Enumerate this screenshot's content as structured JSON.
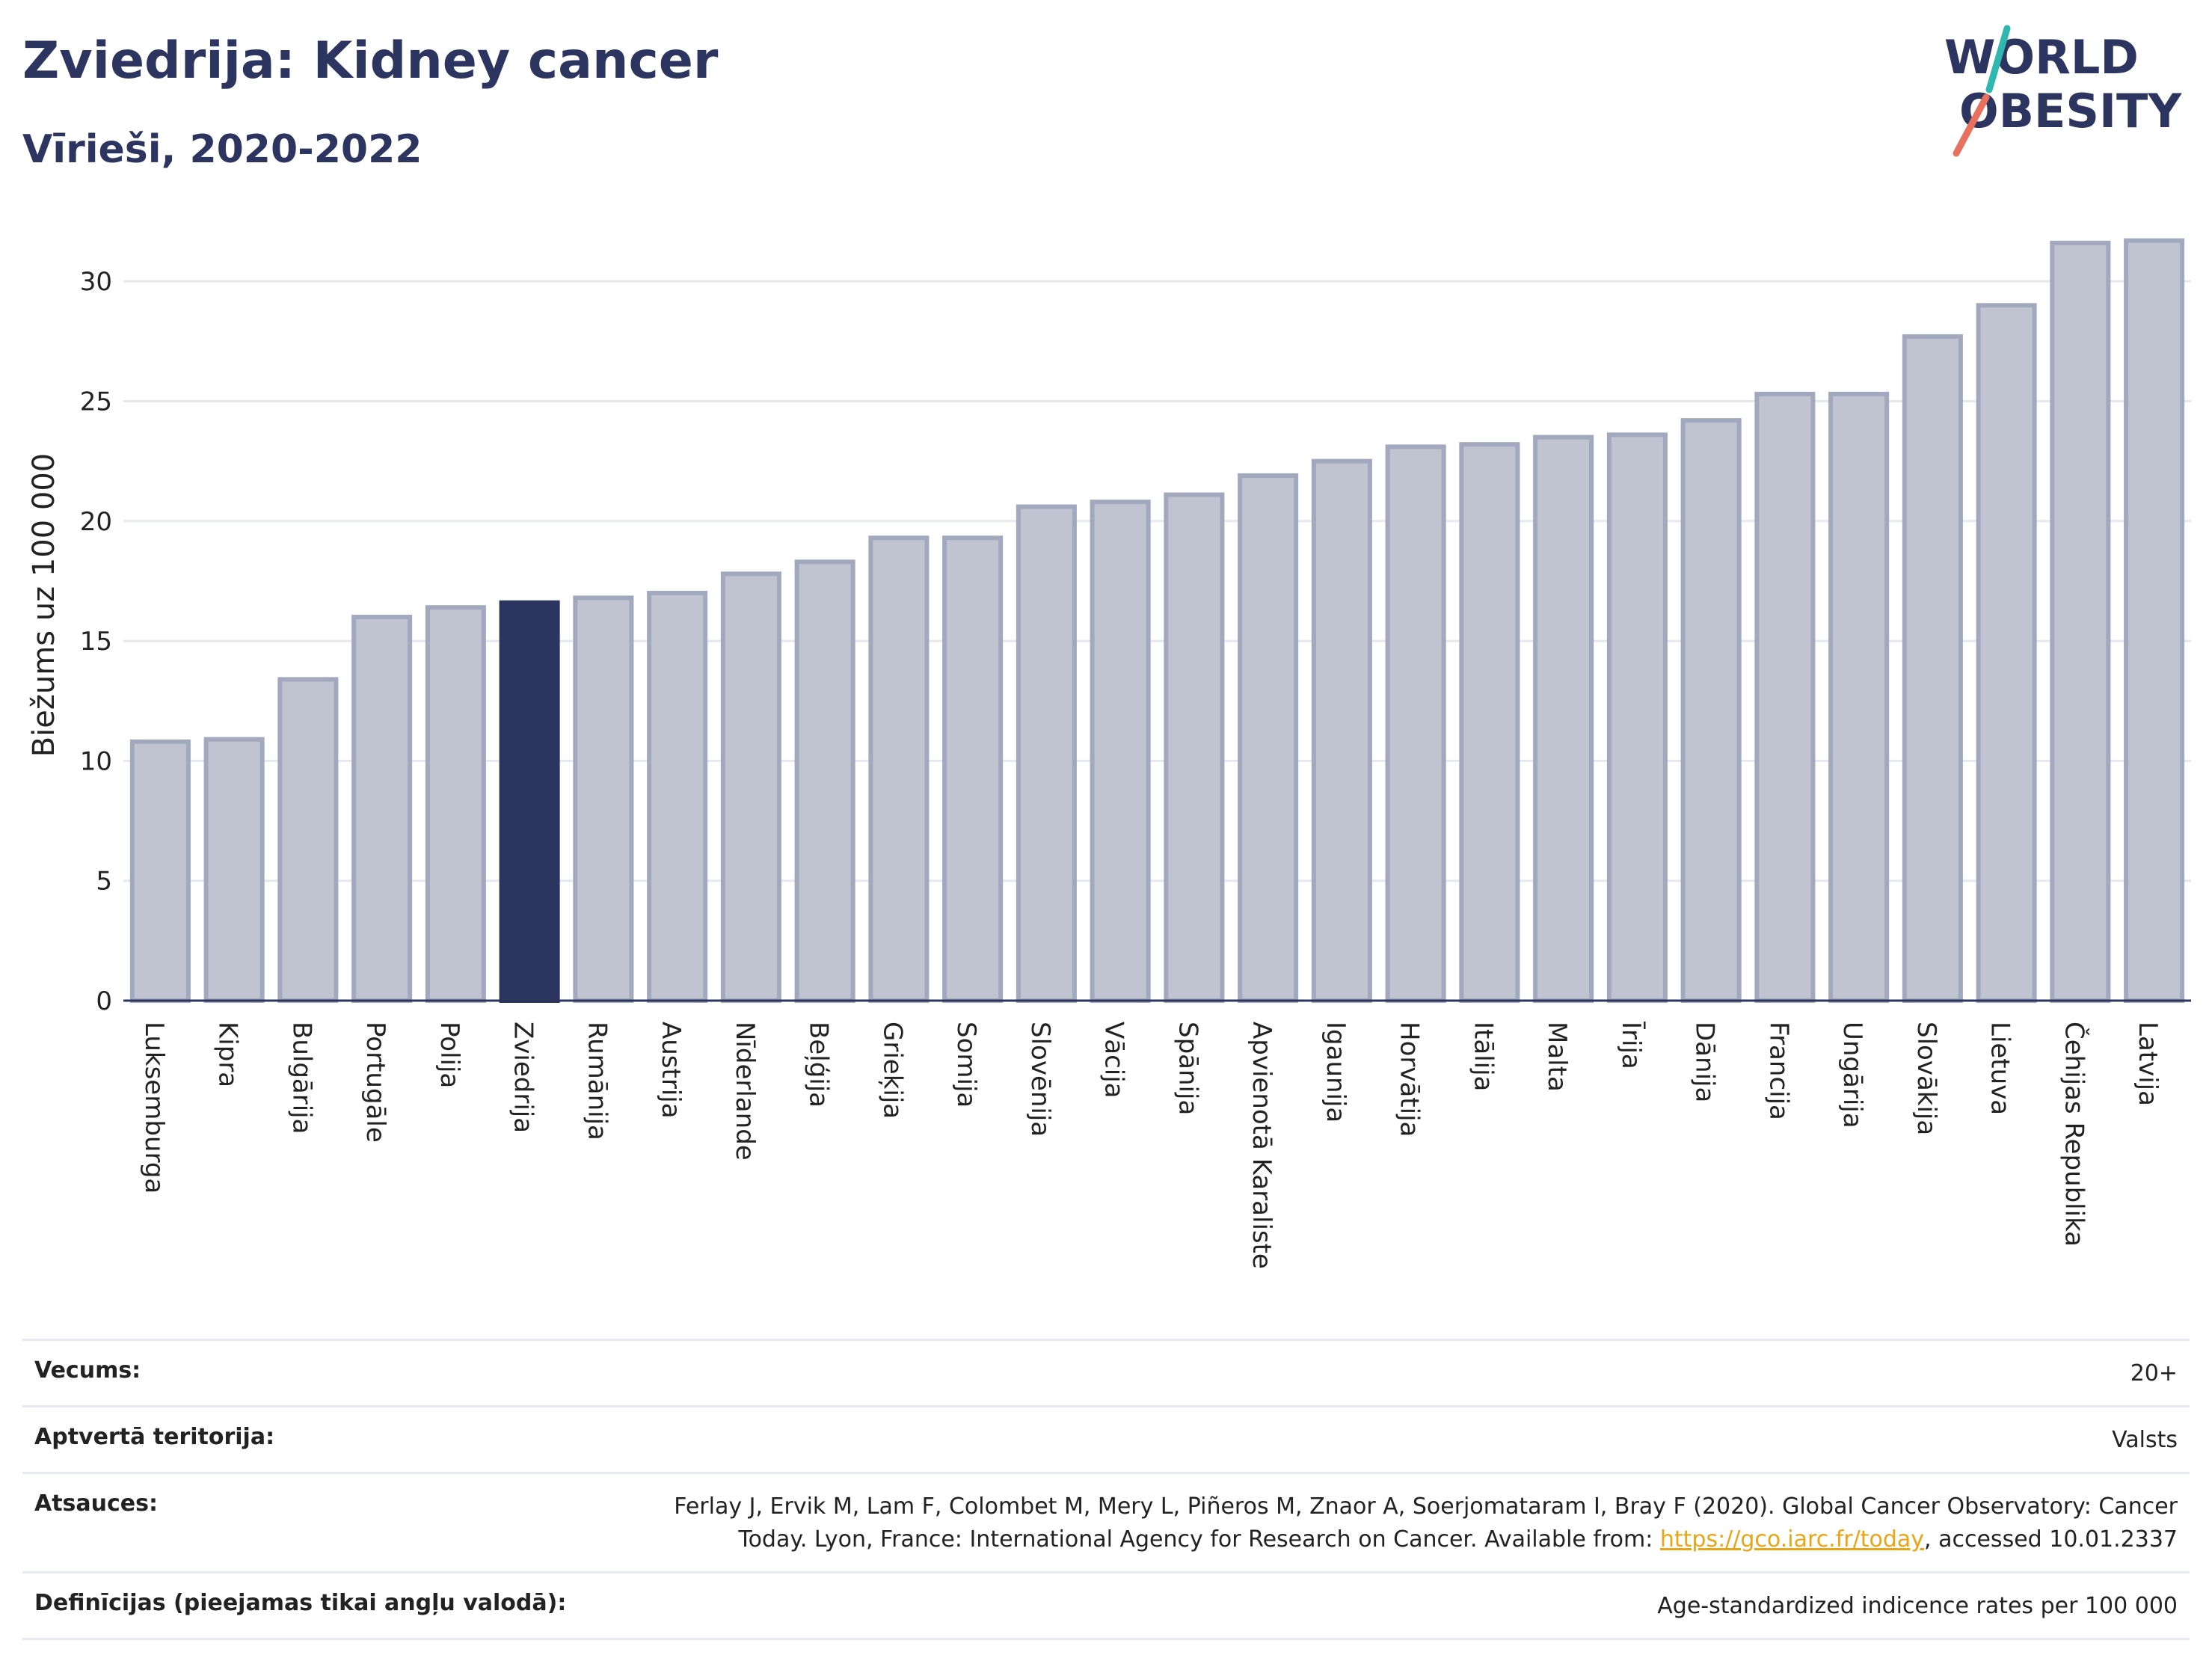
{
  "header": {
    "title": "Zviedrija: Kidney cancer",
    "subtitle": "Vīrieši, 2020-2022"
  },
  "logo": {
    "line1": "WORLD",
    "line2": "OBESITY"
  },
  "chart_data": {
    "type": "bar",
    "ylabel": "Biežums uz 100 000",
    "ylim": [
      0,
      33
    ],
    "yticks": [
      0,
      5,
      10,
      15,
      20,
      25,
      30
    ],
    "grid": true,
    "highlight": "Zviedrija",
    "colors": {
      "bar_fill": "#c0c4d1",
      "bar_stroke": "#a2a8bd",
      "highlight_fill": "#2b3560",
      "grid": "#e6e8ee",
      "axis": "#2b3560"
    },
    "categories": [
      "Luksemburga",
      "Kipra",
      "Bulgārija",
      "Portugāle",
      "Polija",
      "Zviedrija",
      "Rumānija",
      "Austrija",
      "Nīderlande",
      "Beļģija",
      "Grieķija",
      "Somija",
      "Slovēnija",
      "Vācija",
      "Spānija",
      "Apvienotā Karaliste",
      "Igaunija",
      "Horvātija",
      "Itālija",
      "Malta",
      "Īrija",
      "Dānija",
      "Francija",
      "Ungārija",
      "Slovākija",
      "Lietuva",
      "Čehijas Republika",
      "Latvija"
    ],
    "values": [
      10.8,
      10.9,
      13.4,
      16.0,
      16.4,
      16.6,
      16.8,
      17.0,
      17.8,
      18.3,
      19.3,
      19.3,
      20.6,
      20.8,
      21.1,
      21.9,
      22.5,
      23.1,
      23.2,
      23.5,
      23.6,
      24.2,
      25.3,
      25.3,
      27.7,
      29.0,
      31.6,
      31.7
    ]
  },
  "info": {
    "age": {
      "label": "Vecums:",
      "value": "20+"
    },
    "territory": {
      "label": "Aptvertā teritorija:",
      "value": "Valsts"
    },
    "references": {
      "label": "Atsauces:",
      "line1": "Ferlay J, Ervik M, Lam F, Colombet M, Mery L, Piñeros M, Znaor A, Soerjomataram I, Bray F (2020). Global Cancer Observatory: Cancer",
      "line2_pre": "Today. Lyon, France: International Agency for Research on Cancer. Available from: ",
      "link": "https://gco.iarc.fr/today",
      "line2_post": ", accessed 10.01.2337"
    },
    "definitions": {
      "label": "Definīcijas (pieejamas tikai angļu valodā):",
      "value": "Age-standardized indicence rates per 100 000"
    }
  }
}
